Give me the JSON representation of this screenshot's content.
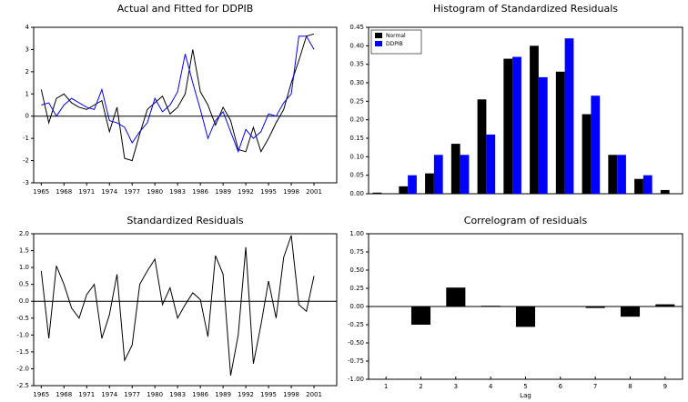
{
  "chart_data": [
    {
      "type": "line",
      "title": "Actual and Fitted for DDPIB",
      "x": [
        1965,
        1966,
        1967,
        1968,
        1969,
        1970,
        1971,
        1972,
        1973,
        1974,
        1975,
        1976,
        1977,
        1978,
        1979,
        1980,
        1981,
        1982,
        1983,
        1984,
        1985,
        1986,
        1987,
        1988,
        1989,
        1990,
        1991,
        1992,
        1993,
        1994,
        1995,
        1996,
        1997,
        1998,
        1999,
        2000,
        2001
      ],
      "xlim": [
        1964,
        2004
      ],
      "xticks": [
        1965,
        1968,
        1971,
        1974,
        1977,
        1980,
        1983,
        1986,
        1989,
        1992,
        1995,
        1998,
        2001
      ],
      "ylim": [
        -3,
        4
      ],
      "yticks": [
        -3,
        -2,
        -1,
        0,
        1,
        2,
        3,
        4
      ],
      "series": [
        {
          "color": "#000000",
          "values": [
            1.2,
            -0.3,
            0.8,
            1.0,
            0.6,
            0.4,
            0.3,
            0.5,
            0.7,
            -0.7,
            0.4,
            -1.9,
            -2.0,
            -0.8,
            0.3,
            0.6,
            0.9,
            0.1,
            0.4,
            1.0,
            3.0,
            1.1,
            0.5,
            -0.4,
            0.4,
            -0.2,
            -1.5,
            -1.6,
            -0.5,
            -1.6,
            -1.0,
            -0.3,
            0.3,
            1.5,
            2.5,
            3.6,
            3.7
          ]
        },
        {
          "color": "#0000ff",
          "values": [
            0.5,
            0.6,
            0.0,
            0.5,
            0.8,
            0.6,
            0.4,
            0.3,
            1.2,
            -0.2,
            -0.3,
            -0.5,
            -1.2,
            -0.7,
            -0.3,
            0.8,
            0.2,
            0.5,
            1.1,
            2.8,
            1.5,
            0.3,
            -1.0,
            -0.2,
            0.2,
            -0.7,
            -1.6,
            -0.6,
            -1.0,
            -0.7,
            0.1,
            0.0,
            0.6,
            1.0,
            3.6,
            3.6,
            3.0
          ]
        }
      ]
    },
    {
      "type": "bar",
      "title": "Histogram of Standardized Residuals",
      "categories": [
        null,
        null,
        null,
        null,
        null,
        null,
        null,
        null,
        null,
        null,
        null,
        null
      ],
      "ylim": [
        0,
        0.45
      ],
      "yticks": [
        {
          "value": 0,
          "label": "0.00"
        },
        0.05,
        {
          "value": 0.1,
          "label": "0.10"
        },
        0.15,
        {
          "value": 0.2,
          "label": "0.20"
        },
        0.25,
        {
          "value": 0.3,
          "label": "0.30"
        },
        0.35,
        {
          "value": 0.4,
          "label": "0.40"
        },
        0.45
      ],
      "legend": "upper left",
      "series": [
        {
          "name": "Normal",
          "color": "#000000",
          "values": [
            0.003,
            0.02,
            0.055,
            0.135,
            0.255,
            0.365,
            0.4,
            0.33,
            0.215,
            0.105,
            0.04,
            0.01
          ]
        },
        {
          "name": "DDPIB",
          "color": "#0000ff",
          "values": [
            0,
            0.05,
            0.105,
            0.105,
            0.16,
            0.37,
            0.315,
            0.42,
            0.265,
            0.105,
            0.05,
            0
          ]
        }
      ]
    },
    {
      "type": "line",
      "title": "Standardized Residuals",
      "x": [
        1965,
        1966,
        1967,
        1968,
        1969,
        1970,
        1971,
        1972,
        1973,
        1974,
        1975,
        1976,
        1977,
        1978,
        1979,
        1980,
        1981,
        1982,
        1983,
        1984,
        1985,
        1986,
        1987,
        1988,
        1989,
        1990,
        1991,
        1992,
        1993,
        1994,
        1995,
        1996,
        1997,
        1998,
        1999,
        2000,
        2001
      ],
      "xlim": [
        1964,
        2004
      ],
      "xticks": [
        1965,
        1968,
        1971,
        1974,
        1977,
        1980,
        1983,
        1986,
        1989,
        1992,
        1995,
        1998,
        2001
      ],
      "ylim": [
        -2.5,
        2.0
      ],
      "yticks": [
        -2.5,
        {
          "value": -2,
          "label": "-2.0"
        },
        -1.5,
        {
          "value": -1,
          "label": "-1.0"
        },
        -0.5,
        {
          "value": 0,
          "label": "0.0"
        },
        0.5,
        {
          "value": 1,
          "label": "1.0"
        },
        1.5,
        {
          "value": 2,
          "label": "2.0"
        }
      ],
      "series": [
        {
          "color": "#000000",
          "values": [
            0.9,
            -1.1,
            1.05,
            0.5,
            -0.2,
            -0.5,
            0.2,
            0.5,
            -1.1,
            -0.4,
            0.8,
            -1.75,
            -1.3,
            0.5,
            0.9,
            1.25,
            -0.1,
            0.4,
            -0.5,
            -0.1,
            0.25,
            0.05,
            -1.05,
            1.35,
            0.8,
            -2.2,
            -1.0,
            1.6,
            -1.85,
            -0.7,
            0.6,
            -0.5,
            1.3,
            1.95,
            -0.1,
            -0.3,
            0.75
          ]
        }
      ]
    },
    {
      "type": "bar",
      "title": "Correlogram of residuals",
      "x_label": "Lag",
      "categories": [
        "1",
        "2",
        "3",
        "4",
        "5",
        "6",
        "7",
        "8",
        "9"
      ],
      "ylim": [
        -1,
        1
      ],
      "yticks": [
        {
          "value": -1,
          "label": "-1.00"
        },
        -0.75,
        {
          "value": -0.5,
          "label": "-0.50"
        },
        -0.25,
        {
          "value": 0,
          "label": "0.00"
        },
        0.25,
        {
          "value": 0.5,
          "label": "0.50"
        },
        0.75,
        {
          "value": 1,
          "label": "1.00"
        }
      ],
      "series": [
        {
          "color": "#000000",
          "values": [
            0,
            -0.25,
            0.26,
            0.01,
            -0.28,
            0,
            -0.02,
            -0.14,
            0.03
          ]
        }
      ]
    }
  ]
}
